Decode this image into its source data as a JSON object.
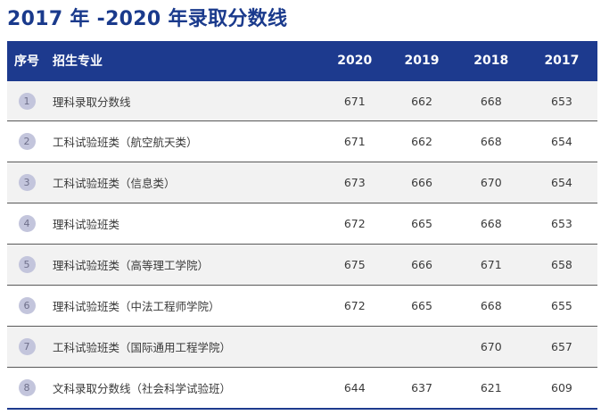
{
  "page": {
    "title": "2017 年 -2020 年录取分数线"
  },
  "table": {
    "headers": {
      "no": "序号",
      "major": "招生专业",
      "y2020": "2020",
      "y2019": "2019",
      "y2018": "2018",
      "y2017": "2017"
    },
    "rows": [
      {
        "no": "1",
        "major": "理科录取分数线",
        "y2020": "671",
        "y2019": "662",
        "y2018": "668",
        "y2017": "653"
      },
      {
        "no": "2",
        "major": "工科试验班类（航空航天类）",
        "y2020": "671",
        "y2019": "662",
        "y2018": "668",
        "y2017": "654"
      },
      {
        "no": "3",
        "major": "工科试验班类（信息类）",
        "y2020": "673",
        "y2019": "666",
        "y2018": "670",
        "y2017": "654"
      },
      {
        "no": "4",
        "major": "理科试验班类",
        "y2020": "672",
        "y2019": "665",
        "y2018": "668",
        "y2017": "653"
      },
      {
        "no": "5",
        "major": "理科试验班类（高等理工学院）",
        "y2020": "675",
        "y2019": "666",
        "y2018": "671",
        "y2017": "658"
      },
      {
        "no": "6",
        "major": "理科试验班类（中法工程师学院）",
        "y2020": "672",
        "y2019": "665",
        "y2018": "668",
        "y2017": "655"
      },
      {
        "no": "7",
        "major": "工科试验班类（国际通用工程学院）",
        "y2020": "",
        "y2019": "",
        "y2018": "670",
        "y2017": "657"
      },
      {
        "no": "8",
        "major": "文科录取分数线（社会科学试验班）",
        "y2020": "644",
        "y2019": "637",
        "y2018": "621",
        "y2017": "609"
      }
    ]
  },
  "colors": {
    "header_bg": "#1d3a8e",
    "title": "#1a3a8c",
    "badge": "#c3c5dc",
    "row_alt": "#f2f2f2"
  }
}
